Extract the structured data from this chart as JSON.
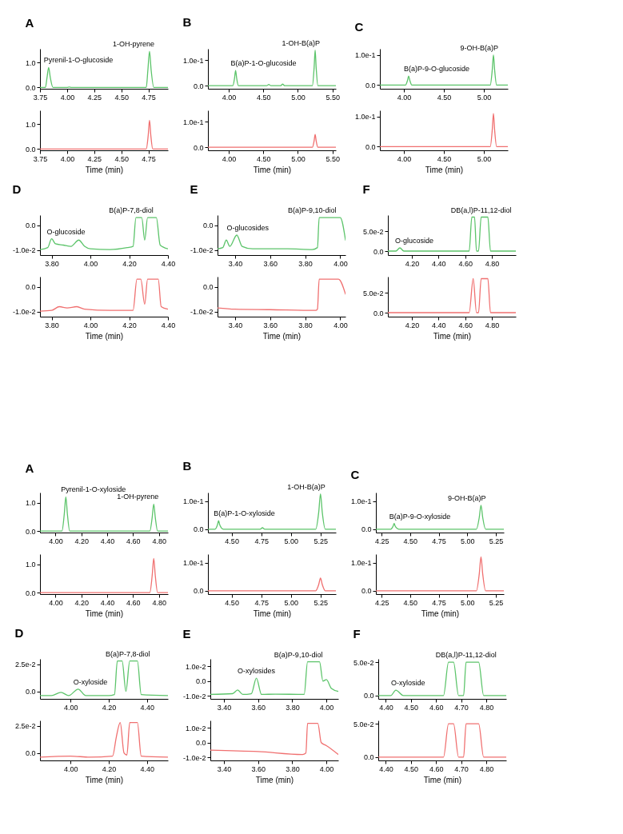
{
  "chart_data": [
    {
      "type": "line",
      "title": "A",
      "x": [
        3.75,
        3.8,
        3.815,
        3.83,
        3.845,
        3.87,
        4.0,
        4.02,
        4.04,
        4.7,
        4.73,
        4.745,
        4.76,
        4.775,
        4.8,
        4.93
      ],
      "series": [
        {
          "color": "#5cc46a",
          "values": [
            0,
            0,
            0.4,
            0.8,
            0.4,
            0,
            0,
            0.02,
            0,
            0,
            0,
            0.7,
            1.45,
            0.7,
            0,
            0
          ]
        }
      ],
      "xlim": [
        3.75,
        4.93
      ],
      "ylim": [
        -0.05,
        1.55
      ],
      "xticks": [
        {
          "value": 3.75,
          "label": "3.75"
        },
        {
          "value": 4,
          "label": "4.00"
        },
        {
          "value": 4.25,
          "label": "4.25"
        },
        {
          "value": 4.5,
          "label": "4.50"
        },
        {
          "value": 4.75,
          "label": "4.75"
        }
      ],
      "yticks": [
        {
          "value": 0,
          "label": "0.0"
        },
        {
          "value": 1,
          "label": "1.0"
        }
      ],
      "annotations": [
        {
          "text": "Pyrenil-1-O-glucoside",
          "x": 3.83,
          "y": 0.8
        },
        {
          "text": "1-OH-pyrene",
          "x": 4.76,
          "y": 1.45
        }
      ]
    },
    {
      "type": "line",
      "xlabel": "Time (min)",
      "x": [
        3.75,
        4.73,
        4.748,
        4.76,
        4.772,
        4.79,
        4.93
      ],
      "series": [
        {
          "color": "#f07070",
          "values": [
            0,
            0,
            0.55,
            1.15,
            0.55,
            0,
            0
          ]
        }
      ],
      "xlim": [
        3.75,
        4.93
      ],
      "ylim": [
        -0.05,
        1.55
      ],
      "xticks": [
        {
          "value": 3.75,
          "label": "3.75"
        },
        {
          "value": 4,
          "label": "4.00"
        },
        {
          "value": 4.25,
          "label": "4.25"
        },
        {
          "value": 4.5,
          "label": "4.50"
        },
        {
          "value": 4.75,
          "label": "4.75"
        }
      ],
      "yticks": [
        {
          "value": 0,
          "label": "0.0"
        },
        {
          "value": 1,
          "label": "1.0"
        }
      ]
    },
    {
      "type": "line",
      "title": "B",
      "x": [
        3.7,
        4.06,
        4.085,
        4.1,
        4.115,
        4.14,
        4.55,
        4.58,
        4.61,
        4.75,
        4.78,
        4.81,
        5.21,
        5.235,
        5.25,
        5.265,
        5.29,
        5.55
      ],
      "series": [
        {
          "color": "#5cc46a",
          "values": [
            0,
            0,
            0.03,
            0.06,
            0.03,
            0,
            0,
            0.005,
            0,
            0,
            0.006,
            0,
            0,
            0.07,
            0.14,
            0.07,
            0,
            0
          ]
        }
      ],
      "xlim": [
        3.7,
        5.55
      ],
      "ylim": [
        -0.012,
        0.145
      ],
      "xticks": [
        {
          "value": 4,
          "label": "4.00"
        },
        {
          "value": 4.5,
          "label": "4.50"
        },
        {
          "value": 5,
          "label": "5.00"
        },
        {
          "value": 5.5,
          "label": "5.50"
        }
      ],
      "yticks": [
        {
          "value": 0,
          "label": "0.0"
        },
        {
          "value": 0.1,
          "label": "1.0e-1"
        }
      ],
      "annotations": [
        {
          "text": "B(a)P-1-O-glucoside",
          "x": 4.1,
          "y": 0.06
        },
        {
          "text": "1-OH-B(a)P",
          "x": 5.25,
          "y": 0.14
        }
      ]
    },
    {
      "type": "line",
      "xlabel": "Time (min)",
      "x": [
        3.7,
        5.21,
        5.235,
        5.25,
        5.265,
        5.29,
        5.55
      ],
      "series": [
        {
          "color": "#f07070",
          "values": [
            0,
            0,
            0.025,
            0.05,
            0.025,
            0,
            0
          ]
        }
      ],
      "xlim": [
        3.7,
        5.55
      ],
      "ylim": [
        -0.012,
        0.145
      ],
      "xticks": [
        {
          "value": 4,
          "label": "4.00"
        },
        {
          "value": 4.5,
          "label": "4.50"
        },
        {
          "value": 5,
          "label": "5.00"
        },
        {
          "value": 5.5,
          "label": "5.50"
        }
      ],
      "yticks": [
        {
          "value": 0,
          "label": "0.0"
        },
        {
          "value": 0.1,
          "label": "1.0e-1"
        }
      ]
    },
    {
      "type": "line",
      "title": "C",
      "x": [
        3.7,
        4.02,
        4.045,
        4.06,
        4.075,
        4.1,
        5.08,
        5.105,
        5.12,
        5.135,
        5.16,
        5.3
      ],
      "series": [
        {
          "color": "#5cc46a",
          "values": [
            0,
            0,
            0.015,
            0.03,
            0.015,
            0,
            0,
            0.05,
            0.1,
            0.05,
            0,
            0
          ]
        }
      ],
      "xlim": [
        3.7,
        5.3
      ],
      "ylim": [
        -0.012,
        0.12
      ],
      "xticks": [
        {
          "value": 4,
          "label": "4.00"
        },
        {
          "value": 4.5,
          "label": "4.50"
        },
        {
          "value": 5,
          "label": "5.00"
        }
      ],
      "yticks": [
        {
          "value": 0,
          "label": "0.0"
        },
        {
          "value": 0.1,
          "label": "1.0e-1"
        }
      ],
      "annotations": [
        {
          "text": "B(a)P-9-O-glucoside",
          "x": 4.06,
          "y": 0.03
        },
        {
          "text": "9-OH-B(a)P",
          "x": 5.12,
          "y": 0.1
        }
      ]
    },
    {
      "type": "line",
      "xlabel": "Time (min)",
      "x": [
        3.7,
        5.08,
        5.105,
        5.12,
        5.135,
        5.16,
        5.3
      ],
      "series": [
        {
          "color": "#f07070",
          "values": [
            0,
            0,
            0.055,
            0.11,
            0.055,
            0,
            0
          ]
        }
      ],
      "xlim": [
        3.7,
        5.3
      ],
      "ylim": [
        -0.012,
        0.12
      ],
      "xticks": [
        {
          "value": 4,
          "label": "4.00"
        },
        {
          "value": 4.5,
          "label": "4.50"
        },
        {
          "value": 5,
          "label": "5.00"
        }
      ],
      "yticks": [
        {
          "value": 0,
          "label": "0.0"
        },
        {
          "value": 0.1,
          "label": "1.0e-1"
        }
      ]
    },
    {
      "type": "line",
      "title": "D",
      "x": [
        3.74,
        3.78,
        3.8,
        3.82,
        3.86,
        3.9,
        3.94,
        3.97,
        4.0,
        4.1,
        4.19,
        4.22,
        4.235,
        4.265,
        4.28,
        4.295,
        4.34,
        4.36,
        4.4
      ],
      "series": [
        {
          "color": "#5cc46a",
          "values": [
            -0.0098,
            -0.009,
            -0.0055,
            -0.0075,
            -0.008,
            -0.0085,
            -0.006,
            -0.0085,
            -0.0095,
            -0.0098,
            -0.009,
            -0.0085,
            0.003,
            0.003,
            -0.006,
            0.003,
            0.003,
            -0.008,
            -0.0095
          ]
        }
      ],
      "xlim": [
        3.74,
        4.4
      ],
      "ylim": [
        -0.012,
        0.004
      ],
      "xticks": [
        {
          "value": 3.8,
          "label": "3.80"
        },
        {
          "value": 4,
          "label": "4.00"
        },
        {
          "value": 4.2,
          "label": "4.20"
        },
        {
          "value": 4.4,
          "label": "4.40"
        }
      ],
      "yticks": [
        {
          "value": -0.01,
          "label": "-1.0e-2"
        },
        {
          "value": 0,
          "label": "0.0"
        }
      ],
      "annotations": [
        {
          "text": "O-glucoside",
          "x": 3.8,
          "y": -0.0055
        },
        {
          "text": "B(a)P-7,8-diol",
          "x": 4.3,
          "y": 0.003
        }
      ]
    },
    {
      "type": "line",
      "xlabel": "Time (min)",
      "x": [
        3.74,
        3.8,
        3.84,
        3.88,
        3.93,
        3.97,
        4.1,
        4.22,
        4.24,
        4.26,
        4.28,
        4.295,
        4.31,
        4.35,
        4.365,
        4.4
      ],
      "series": [
        {
          "color": "#f07070",
          "values": [
            -0.0098,
            -0.0095,
            -0.008,
            -0.0085,
            -0.008,
            -0.009,
            -0.0095,
            -0.0095,
            0.003,
            0.003,
            -0.007,
            0.003,
            0.003,
            0.003,
            -0.008,
            -0.009
          ]
        }
      ],
      "xlim": [
        3.74,
        4.4
      ],
      "ylim": [
        -0.012,
        0.004
      ],
      "xticks": [
        {
          "value": 3.8,
          "label": "3.80"
        },
        {
          "value": 4,
          "label": "4.00"
        },
        {
          "value": 4.2,
          "label": "4.20"
        },
        {
          "value": 4.4,
          "label": "4.40"
        }
      ],
      "yticks": [
        {
          "value": -0.01,
          "label": "-1.0e-2"
        },
        {
          "value": 0,
          "label": "0.0"
        }
      ]
    },
    {
      "type": "line",
      "title": "E",
      "x": [
        3.3,
        3.33,
        3.35,
        3.37,
        3.41,
        3.44,
        3.5,
        3.7,
        3.84,
        3.87,
        3.88,
        4.0,
        4.03
      ],
      "series": [
        {
          "color": "#5cc46a",
          "values": [
            -0.0095,
            -0.009,
            -0.006,
            -0.0085,
            -0.004,
            -0.0085,
            -0.0095,
            -0.0095,
            -0.0098,
            -0.009,
            0.003,
            0.003,
            -0.006
          ]
        }
      ],
      "xlim": [
        3.3,
        4.03
      ],
      "ylim": [
        -0.012,
        0.004
      ],
      "xticks": [
        {
          "value": 3.4,
          "label": "3.40"
        },
        {
          "value": 3.6,
          "label": "3.60"
        },
        {
          "value": 3.8,
          "label": "3.80"
        },
        {
          "value": 4,
          "label": "4.00"
        }
      ],
      "yticks": [
        {
          "value": -0.01,
          "label": "-1.0e-2"
        },
        {
          "value": 0,
          "label": "0.0"
        }
      ],
      "annotations": [
        {
          "text": "O-glucosides",
          "x": 3.38,
          "y": -0.004
        },
        {
          "text": "B(a)P-9,10-diol",
          "x": 3.95,
          "y": 0.003
        }
      ]
    },
    {
      "type": "line",
      "xlabel": "Time (min)",
      "x": [
        3.3,
        3.4,
        3.6,
        3.86,
        3.87,
        3.88,
        3.99,
        4.03
      ],
      "series": [
        {
          "color": "#f07070",
          "values": [
            -0.0085,
            -0.009,
            -0.0092,
            -0.0095,
            -0.009,
            0.003,
            0.003,
            -0.003
          ]
        }
      ],
      "xlim": [
        3.3,
        4.03
      ],
      "ylim": [
        -0.012,
        0.004
      ],
      "xticks": [
        {
          "value": 3.4,
          "label": "3.40"
        },
        {
          "value": 3.6,
          "label": "3.60"
        },
        {
          "value": 3.8,
          "label": "3.80"
        },
        {
          "value": 4,
          "label": "4.00"
        }
      ],
      "yticks": [
        {
          "value": -0.01,
          "label": "-1.0e-2"
        },
        {
          "value": 0,
          "label": "0.0"
        }
      ]
    },
    {
      "type": "line",
      "title": "F",
      "x": [
        4.02,
        4.08,
        4.11,
        4.14,
        4.63,
        4.65,
        4.67,
        4.685,
        4.7,
        4.72,
        4.77,
        4.79,
        4.98
      ],
      "series": [
        {
          "color": "#5cc46a",
          "values": [
            0,
            0,
            0.008,
            0,
            0,
            0.085,
            0.085,
            0,
            0,
            0.085,
            0.085,
            0,
            0
          ]
        }
      ],
      "xlim": [
        4.02,
        4.98
      ],
      "ylim": [
        -0.01,
        0.09
      ],
      "xticks": [
        {
          "value": 4.2,
          "label": "4.20"
        },
        {
          "value": 4.4,
          "label": "4.40"
        },
        {
          "value": 4.6,
          "label": "4.60"
        },
        {
          "value": 4.8,
          "label": "4.80"
        }
      ],
      "yticks": [
        {
          "value": 0,
          "label": "0.0"
        },
        {
          "value": 0.05,
          "label": "5.0e-2"
        }
      ],
      "annotations": [
        {
          "text": "O-glucoside",
          "x": 4.11,
          "y": 0.008
        },
        {
          "text": "DB(a,l)P-11,12-diol",
          "x": 4.72,
          "y": 0.085
        }
      ]
    },
    {
      "type": "line",
      "xlabel": "Time (min)",
      "x": [
        4.02,
        4.63,
        4.66,
        4.685,
        4.7,
        4.72,
        4.77,
        4.79,
        4.98
      ],
      "series": [
        {
          "color": "#f07070",
          "values": [
            0,
            0,
            0.085,
            0,
            0,
            0.085,
            0.085,
            0,
            0
          ]
        }
      ],
      "xlim": [
        4.02,
        4.98
      ],
      "ylim": [
        -0.01,
        0.09
      ],
      "xticks": [
        {
          "value": 4.2,
          "label": "4.20"
        },
        {
          "value": 4.4,
          "label": "4.40"
        },
        {
          "value": 4.6,
          "label": "4.60"
        },
        {
          "value": 4.8,
          "label": "4.80"
        }
      ],
      "yticks": [
        {
          "value": 0,
          "label": "0.0"
        },
        {
          "value": 0.05,
          "label": "5.0e-2"
        }
      ]
    },
    {
      "type": "line",
      "title": "A",
      "x": [
        3.88,
        4.05,
        4.068,
        4.08,
        4.092,
        4.11,
        4.73,
        4.748,
        4.76,
        4.772,
        4.79,
        4.87
      ],
      "series": [
        {
          "color": "#5cc46a",
          "values": [
            0,
            0,
            0.6,
            1.2,
            0.6,
            0,
            0,
            0.48,
            0.95,
            0.48,
            0,
            0
          ]
        }
      ],
      "xlim": [
        3.88,
        4.87
      ],
      "ylim": [
        -0.05,
        1.35
      ],
      "xticks": [
        {
          "value": 4,
          "label": "4.00"
        },
        {
          "value": 4.2,
          "label": "4.20"
        },
        {
          "value": 4.4,
          "label": "4.40"
        },
        {
          "value": 4.6,
          "label": "4.60"
        },
        {
          "value": 4.8,
          "label": "4.80"
        }
      ],
      "yticks": [
        {
          "value": 0,
          "label": "0.0"
        },
        {
          "value": 1,
          "label": "1.0"
        }
      ],
      "annotations": [
        {
          "text": "Pyrenil-1-O-xyloside",
          "x": 4.08,
          "y": 1.2
        },
        {
          "text": "1-OH-pyrene",
          "x": 4.76,
          "y": 0.95
        }
      ]
    },
    {
      "type": "line",
      "xlabel": "Time (min)",
      "x": [
        3.88,
        4.73,
        4.748,
        4.76,
        4.772,
        4.79,
        4.87
      ],
      "series": [
        {
          "color": "#f07070",
          "values": [
            0,
            0,
            0.6,
            1.2,
            0.6,
            0,
            0
          ]
        }
      ],
      "xlim": [
        3.88,
        4.87
      ],
      "ylim": [
        -0.05,
        1.35
      ],
      "xticks": [
        {
          "value": 4,
          "label": "4.00"
        },
        {
          "value": 4.2,
          "label": "4.20"
        },
        {
          "value": 4.4,
          "label": "4.40"
        },
        {
          "value": 4.6,
          "label": "4.60"
        },
        {
          "value": 4.8,
          "label": "4.80"
        }
      ],
      "yticks": [
        {
          "value": 0,
          "label": "0.0"
        },
        {
          "value": 1,
          "label": "1.0"
        }
      ]
    },
    {
      "type": "line",
      "title": "B",
      "x": [
        4.3,
        4.36,
        4.38,
        4.39,
        4.4,
        4.43,
        4.74,
        4.76,
        4.78,
        5.21,
        5.235,
        5.25,
        5.265,
        5.29,
        5.38
      ],
      "series": [
        {
          "color": "#5cc46a",
          "values": [
            0,
            0,
            0.015,
            0.03,
            0.015,
            0,
            0,
            0.005,
            0,
            0,
            0.06,
            0.125,
            0.06,
            0,
            0
          ]
        }
      ],
      "xlim": [
        4.3,
        5.38
      ],
      "ylim": [
        -0.012,
        0.13
      ],
      "xticks": [
        {
          "value": 4.5,
          "label": "4.50"
        },
        {
          "value": 4.75,
          "label": "4.75"
        },
        {
          "value": 5,
          "label": "5.00"
        },
        {
          "value": 5.25,
          "label": "5.25"
        }
      ],
      "yticks": [
        {
          "value": 0,
          "label": "0.0"
        },
        {
          "value": 0.1,
          "label": "1.0e-1"
        }
      ],
      "annotations": [
        {
          "text": "B(a)P-1-O-xyloside",
          "x": 4.39,
          "y": 0.03
        },
        {
          "text": "1-OH-B(a)P",
          "x": 5.25,
          "y": 0.125
        }
      ]
    },
    {
      "type": "line",
      "xlabel": "Time (min)",
      "x": [
        4.3,
        5.21,
        5.235,
        5.25,
        5.265,
        5.29,
        5.38
      ],
      "series": [
        {
          "color": "#f07070",
          "values": [
            0,
            0,
            0.022,
            0.045,
            0.022,
            0,
            0
          ]
        }
      ],
      "xlim": [
        4.3,
        5.38
      ],
      "ylim": [
        -0.012,
        0.13
      ],
      "xticks": [
        {
          "value": 4.5,
          "label": "4.50"
        },
        {
          "value": 4.75,
          "label": "4.75"
        },
        {
          "value": 5,
          "label": "5.00"
        },
        {
          "value": 5.25,
          "label": "5.25"
        }
      ],
      "yticks": [
        {
          "value": 0,
          "label": "0.0"
        },
        {
          "value": 0.1,
          "label": "1.0e-1"
        }
      ]
    },
    {
      "type": "line",
      "title": "C",
      "x": [
        4.2,
        4.33,
        4.35,
        4.36,
        4.37,
        4.4,
        5.08,
        5.105,
        5.12,
        5.135,
        5.16,
        5.32
      ],
      "series": [
        {
          "color": "#5cc46a",
          "values": [
            0,
            0,
            0.01,
            0.02,
            0.01,
            0,
            0,
            0.042,
            0.085,
            0.042,
            0,
            0
          ]
        }
      ],
      "xlim": [
        4.2,
        5.32
      ],
      "ylim": [
        -0.012,
        0.13
      ],
      "xticks": [
        {
          "value": 4.25,
          "label": "4.25"
        },
        {
          "value": 4.5,
          "label": "4.50"
        },
        {
          "value": 4.75,
          "label": "4.75"
        },
        {
          "value": 5,
          "label": "5.00"
        },
        {
          "value": 5.25,
          "label": "5.25"
        }
      ],
      "yticks": [
        {
          "value": 0,
          "label": "0.0"
        },
        {
          "value": 0.1,
          "label": "1.0e-1"
        }
      ],
      "annotations": [
        {
          "text": "B(a)P-9-O-xyloside",
          "x": 4.36,
          "y": 0.02
        },
        {
          "text": "9-OH-B(a)P",
          "x": 5.12,
          "y": 0.085
        }
      ]
    },
    {
      "type": "line",
      "xlabel": "Time (min)",
      "x": [
        4.2,
        5.08,
        5.105,
        5.12,
        5.135,
        5.16,
        5.32
      ],
      "series": [
        {
          "color": "#f07070",
          "values": [
            0,
            0,
            0.06,
            0.12,
            0.06,
            0,
            0
          ]
        }
      ],
      "xlim": [
        4.2,
        5.32
      ],
      "ylim": [
        -0.012,
        0.13
      ],
      "xticks": [
        {
          "value": 4.25,
          "label": "4.25"
        },
        {
          "value": 4.5,
          "label": "4.50"
        },
        {
          "value": 4.75,
          "label": "4.75"
        },
        {
          "value": 5,
          "label": "5.00"
        },
        {
          "value": 5.25,
          "label": "5.25"
        }
      ],
      "yticks": [
        {
          "value": 0,
          "label": "0.0"
        },
        {
          "value": 0.1,
          "label": "1.0e-1"
        }
      ]
    },
    {
      "type": "line",
      "title": "D",
      "x": [
        3.84,
        3.9,
        3.95,
        3.99,
        4.04,
        4.08,
        4.2,
        4.23,
        4.245,
        4.27,
        4.29,
        4.31,
        4.35,
        4.37,
        4.51
      ],
      "series": [
        {
          "color": "#5cc46a",
          "values": [
            -0.004,
            -0.004,
            -0.001,
            -0.004,
            0.002,
            -0.004,
            -0.004,
            -0.003,
            0.028,
            0.028,
            0.0,
            0.028,
            0.028,
            -0.003,
            -0.004
          ]
        }
      ],
      "xlim": [
        3.84,
        4.51
      ],
      "ylim": [
        -0.007,
        0.03
      ],
      "xticks": [
        {
          "value": 4,
          "label": "4.00"
        },
        {
          "value": 4.2,
          "label": "4.20"
        },
        {
          "value": 4.4,
          "label": "4.40"
        }
      ],
      "yticks": [
        {
          "value": 0,
          "label": "0.0"
        },
        {
          "value": 0.025,
          "label": "2.5e-2"
        }
      ],
      "annotations": [
        {
          "text": "O-xyloside",
          "x": 4.04,
          "y": 0.002
        },
        {
          "text": "B(a)P-7,8-diol",
          "x": 4.3,
          "y": 0.028
        }
      ]
    },
    {
      "type": "line",
      "xlabel": "Time (min)",
      "x": [
        3.84,
        4.0,
        4.1,
        4.22,
        4.24,
        4.26,
        4.28,
        4.295,
        4.31,
        4.35,
        4.37,
        4.51
      ],
      "series": [
        {
          "color": "#f07070",
          "values": [
            -0.004,
            -0.003,
            -0.004,
            -0.003,
            0.015,
            0.028,
            0.0,
            -0.002,
            0.028,
            0.028,
            -0.003,
            -0.004
          ]
        }
      ],
      "xlim": [
        3.84,
        4.51
      ],
      "ylim": [
        -0.007,
        0.03
      ],
      "xticks": [
        {
          "value": 4,
          "label": "4.00"
        },
        {
          "value": 4.2,
          "label": "4.20"
        },
        {
          "value": 4.4,
          "label": "4.40"
        }
      ],
      "yticks": [
        {
          "value": 0,
          "label": "0.0"
        },
        {
          "value": 0.025,
          "label": "2.5e-2"
        }
      ]
    },
    {
      "type": "line",
      "title": "E",
      "x": [
        3.32,
        3.45,
        3.48,
        3.51,
        3.56,
        3.59,
        3.62,
        3.7,
        3.87,
        3.89,
        3.96,
        3.98,
        4.0,
        4.03,
        4.07
      ],
      "series": [
        {
          "color": "#5cc46a",
          "values": [
            -0.009,
            -0.0085,
            -0.006,
            -0.009,
            -0.0085,
            0.002,
            -0.009,
            -0.0088,
            -0.009,
            0.013,
            0.013,
            0.0,
            0.001,
            -0.005,
            -0.007
          ]
        }
      ],
      "xlim": [
        3.32,
        4.07
      ],
      "ylim": [
        -0.012,
        0.015
      ],
      "xticks": [
        {
          "value": 3.4,
          "label": "3.40"
        },
        {
          "value": 3.6,
          "label": "3.60"
        },
        {
          "value": 3.8,
          "label": "3.80"
        },
        {
          "value": 4,
          "label": "4.00"
        }
      ],
      "yticks": [
        {
          "value": -0.01,
          "label": "-1.0e-2"
        },
        {
          "value": 0,
          "label": "0.0"
        },
        {
          "value": 0.01,
          "label": "1.0e-2"
        }
      ],
      "annotations": [
        {
          "text": "O-xylosides",
          "x": 3.59,
          "y": 0.002
        },
        {
          "text": "B(a)P-9,10-diol",
          "x": 3.95,
          "y": 0.013
        }
      ]
    },
    {
      "type": "line",
      "xlabel": "Time (min)",
      "x": [
        3.32,
        3.6,
        3.86,
        3.88,
        3.89,
        3.95,
        3.97,
        4.0,
        4.07
      ],
      "series": [
        {
          "color": "#f07070",
          "values": [
            -0.005,
            -0.006,
            -0.008,
            -0.007,
            0.013,
            0.013,
            0.0,
            -0.002,
            -0.008
          ]
        }
      ],
      "xlim": [
        3.32,
        4.07
      ],
      "ylim": [
        -0.012,
        0.015
      ],
      "xticks": [
        {
          "value": 3.4,
          "label": "3.40"
        },
        {
          "value": 3.6,
          "label": "3.60"
        },
        {
          "value": 3.8,
          "label": "3.80"
        },
        {
          "value": 4,
          "label": "4.00"
        }
      ],
      "yticks": [
        {
          "value": -0.01,
          "label": "-1.0e-2"
        },
        {
          "value": 0,
          "label": "0.0"
        },
        {
          "value": 0.01,
          "label": "1.0e-2"
        }
      ]
    },
    {
      "type": "line",
      "title": "F",
      "x": [
        4.37,
        4.42,
        4.44,
        4.47,
        4.63,
        4.65,
        4.67,
        4.69,
        4.71,
        4.72,
        4.77,
        4.79,
        4.88
      ],
      "series": [
        {
          "color": "#5cc46a",
          "values": [
            0,
            0,
            0.008,
            0,
            0,
            0.05,
            0.05,
            0,
            0,
            0.05,
            0.05,
            0,
            0
          ]
        }
      ],
      "xlim": [
        4.37,
        4.88
      ],
      "ylim": [
        -0.005,
        0.055
      ],
      "xticks": [
        {
          "value": 4.4,
          "label": "4.40"
        },
        {
          "value": 4.5,
          "label": "4.50"
        },
        {
          "value": 4.6,
          "label": "4.60"
        },
        {
          "value": 4.7,
          "label": "4.70"
        },
        {
          "value": 4.8,
          "label": "4.80"
        }
      ],
      "yticks": [
        {
          "value": 0,
          "label": "0.0"
        },
        {
          "value": 0.05,
          "label": "5.0e-2"
        }
      ],
      "annotations": [
        {
          "text": "O-xyloside",
          "x": 4.44,
          "y": 0.008
        },
        {
          "text": "DB(a,l)P-11,12-diol",
          "x": 4.72,
          "y": 0.05
        }
      ]
    },
    {
      "type": "line",
      "xlabel": "Time (min)",
      "x": [
        4.37,
        4.63,
        4.65,
        4.67,
        4.69,
        4.71,
        4.72,
        4.77,
        4.79,
        4.88
      ],
      "series": [
        {
          "color": "#f07070",
          "values": [
            0,
            0,
            0.05,
            0.05,
            0,
            0,
            0.05,
            0.05,
            0,
            0
          ]
        }
      ],
      "xlim": [
        4.37,
        4.88
      ],
      "ylim": [
        -0.005,
        0.055
      ],
      "xticks": [
        {
          "value": 4.4,
          "label": "4.40"
        },
        {
          "value": 4.5,
          "label": "4.50"
        },
        {
          "value": 4.6,
          "label": "4.60"
        },
        {
          "value": 4.7,
          "label": "4.70"
        },
        {
          "value": 4.8,
          "label": "4.80"
        }
      ],
      "yticks": [
        {
          "value": 0,
          "label": "0.0"
        },
        {
          "value": 0.05,
          "label": "5.0e-2"
        }
      ]
    }
  ]
}
